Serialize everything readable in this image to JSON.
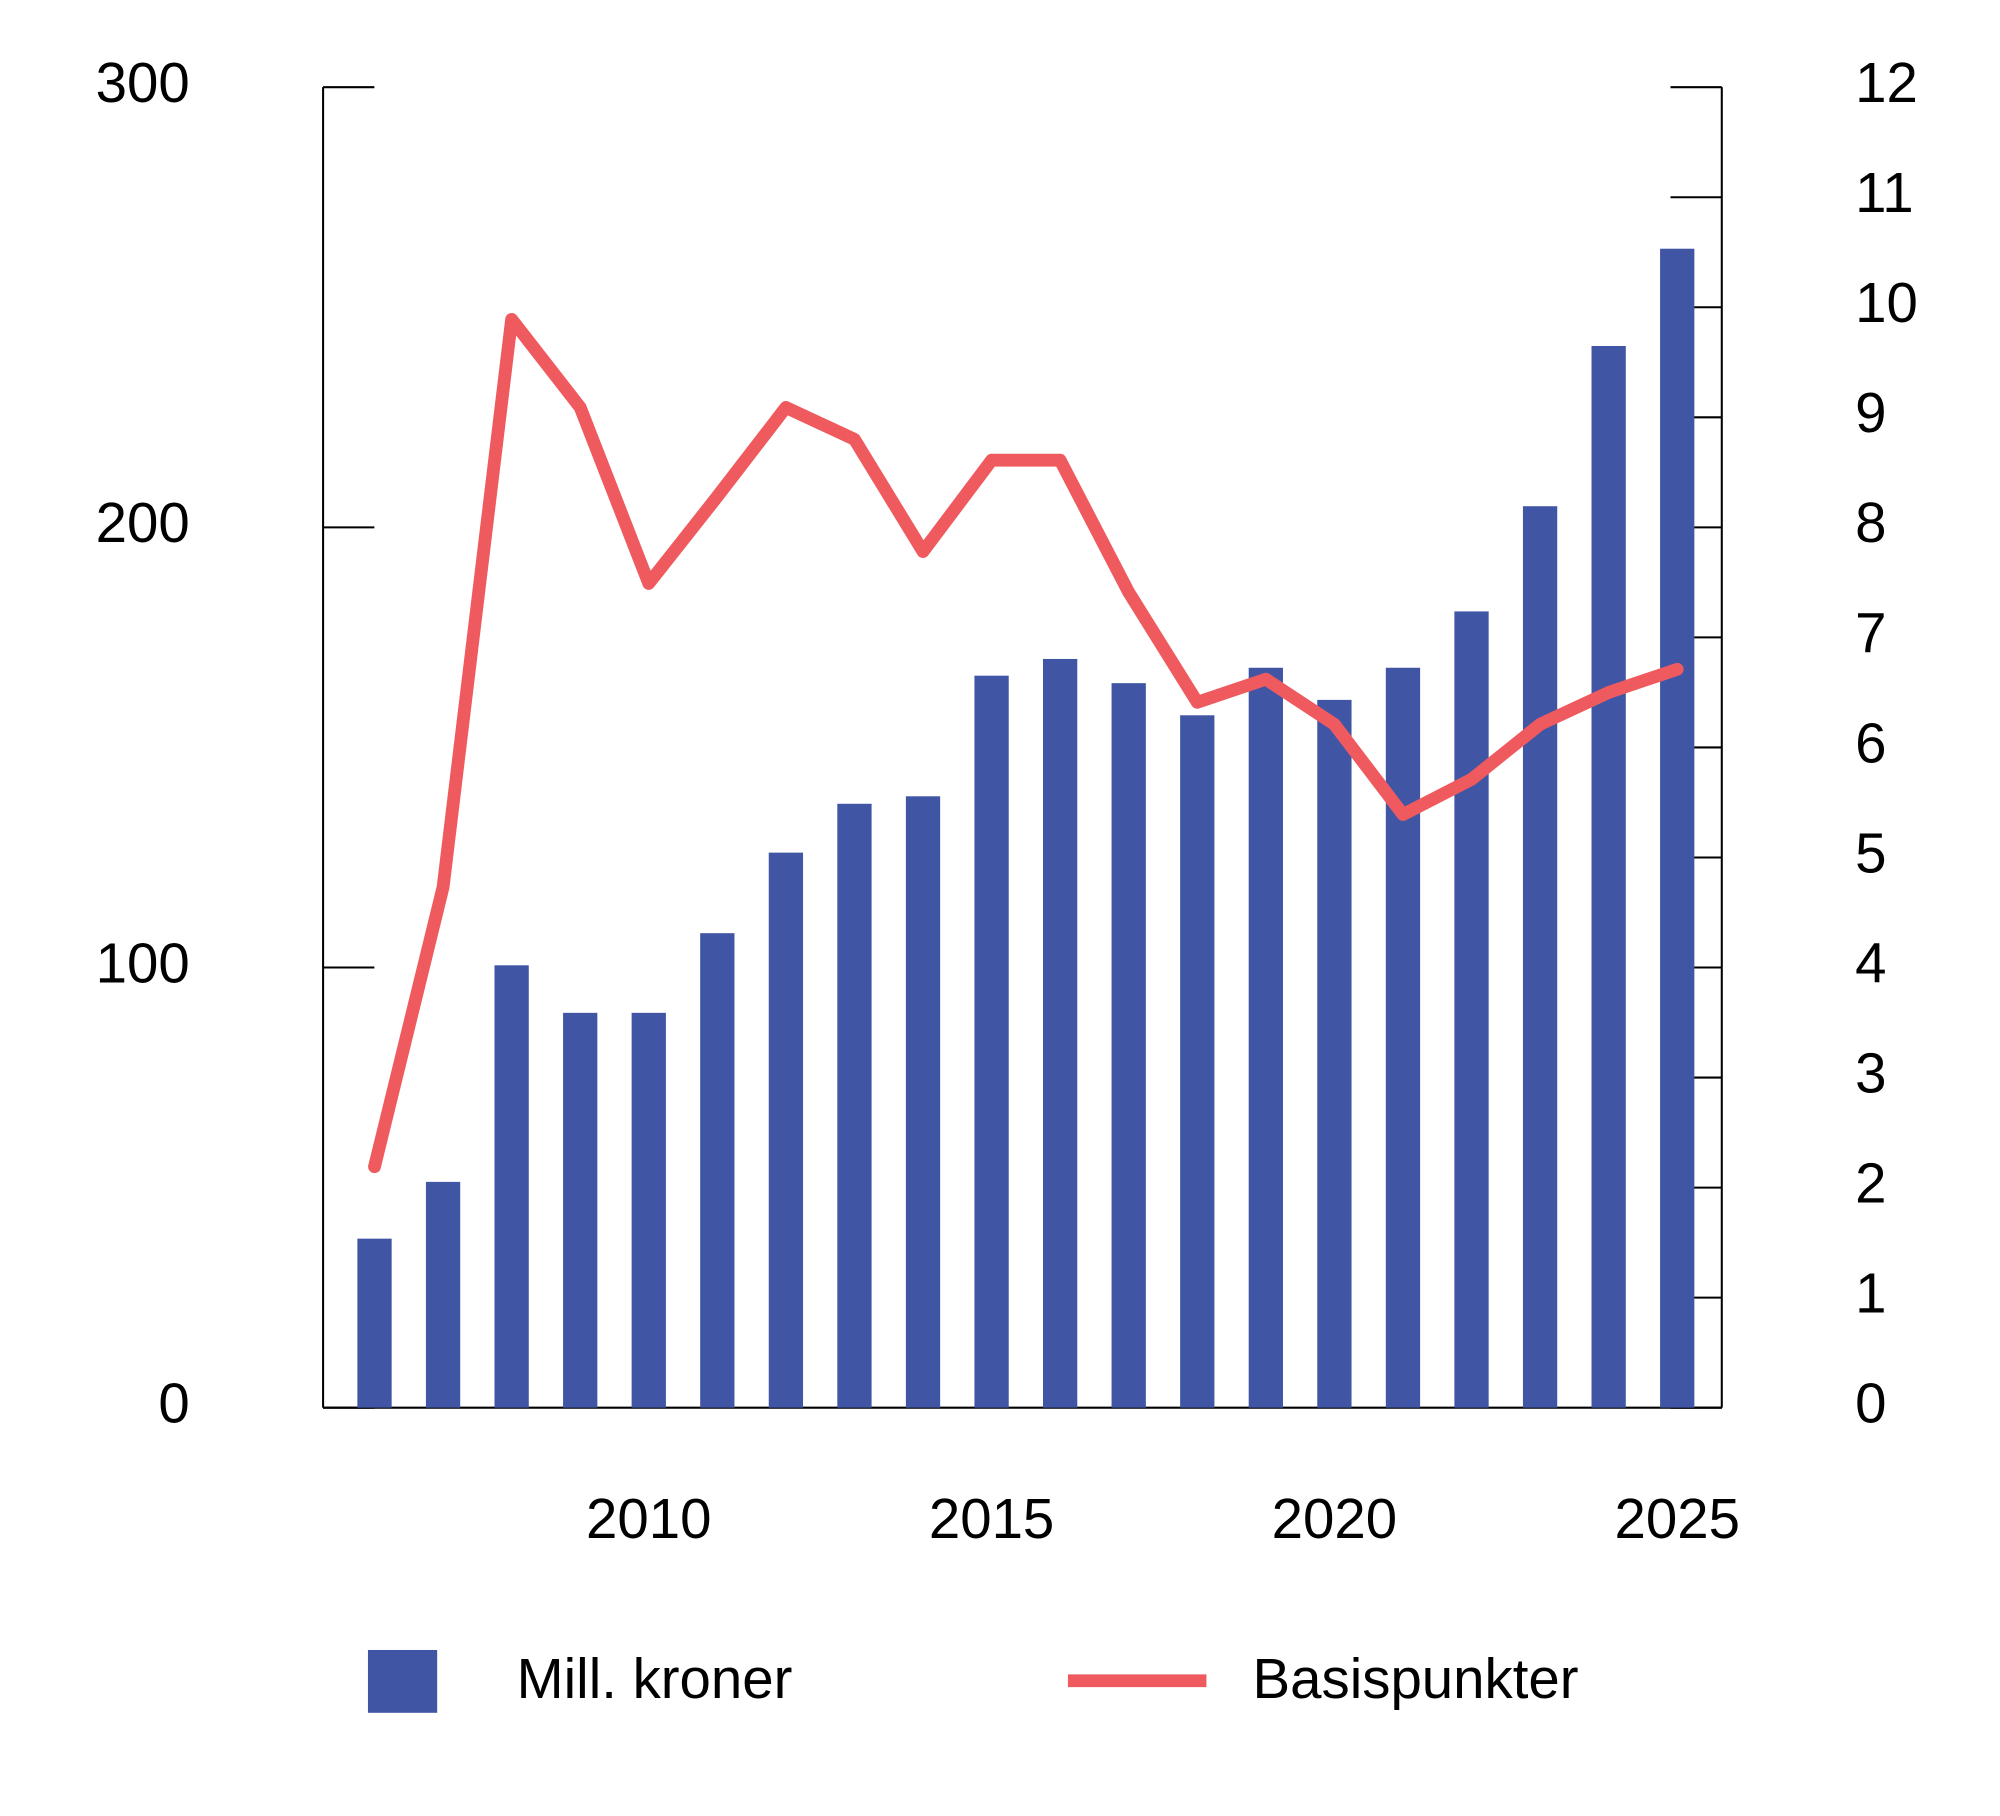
{
  "chart_data": {
    "type": "bar_line",
    "x": [
      2006,
      2007,
      2008,
      2009,
      2010,
      2011,
      2012,
      2013,
      2014,
      2015,
      2016,
      2017,
      2018,
      2019,
      2020,
      2021,
      2022,
      2023,
      2024,
      2025
    ],
    "series": [
      {
        "name": "Mill. kroner",
        "type": "bar",
        "color": "#4155a5",
        "values": [
          38.4,
          51.3,
          100.5,
          89.7,
          89.7,
          107.8,
          126.1,
          137.2,
          138.9,
          166.3,
          170.1,
          164.6,
          157.3,
          168.1,
          160.8,
          168.1,
          180.9,
          204.8,
          241.2,
          263.3
        ]
      },
      {
        "name": "Basispunkter",
        "type": "line",
        "axis": "y2",
        "color": "#ef5a5f",
        "values": [
          2.19,
          4.73,
          9.89,
          9.09,
          7.49,
          8.28,
          9.09,
          8.8,
          7.78,
          8.61,
          8.61,
          7.41,
          6.41,
          6.62,
          6.21,
          5.39,
          5.71,
          6.21,
          6.5,
          6.71
        ]
      }
    ],
    "xlim": [
      2005.25,
      2025.65
    ],
    "xticks": [
      2010,
      2015,
      2020,
      2025
    ],
    "ylim": [
      0,
      300
    ],
    "yticks": [
      0,
      100,
      200,
      300
    ],
    "y2lim": [
      0,
      12
    ],
    "y2ticks": [
      0,
      1,
      2,
      3,
      4,
      5,
      6,
      7,
      8,
      9,
      10,
      11,
      12
    ],
    "grid": false,
    "legend": "bottom"
  }
}
